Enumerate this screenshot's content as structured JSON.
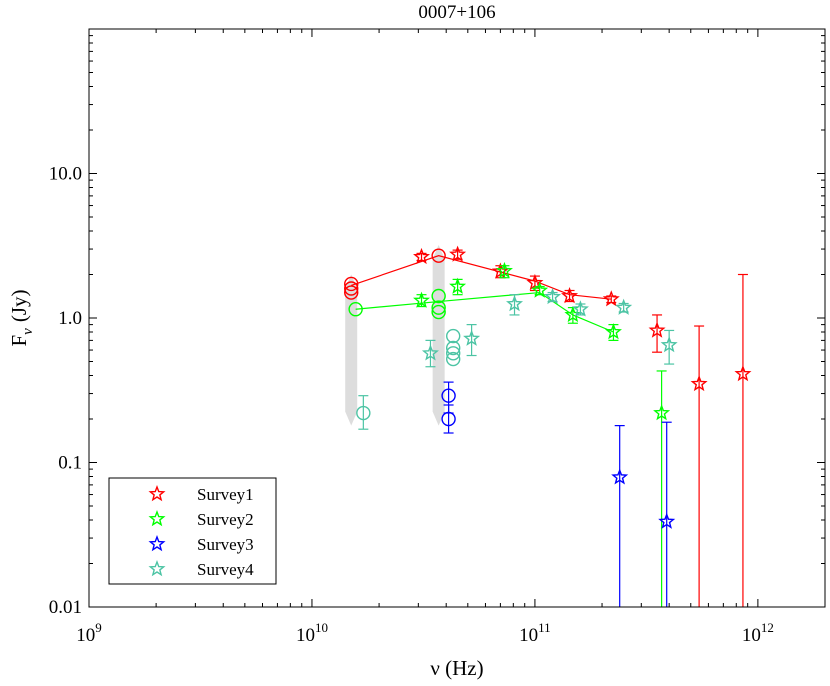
{
  "chart_data": {
    "type": "scatter",
    "title": "0007+106",
    "xlabel": "ν (Hz)",
    "ylabel_main": "F",
    "ylabel_sub": "ν",
    "ylabel_unit": "(Jy)",
    "x_scale": "log",
    "y_scale": "log",
    "xlim": [
      1000000000.0,
      2000000000000.0
    ],
    "ylim": [
      0.01,
      100
    ],
    "x_ticks": [
      {
        "value": 1000000000.0,
        "base": "10",
        "exp": "9"
      },
      {
        "value": 10000000000.0,
        "base": "10",
        "exp": "10"
      },
      {
        "value": 100000000000.0,
        "base": "10",
        "exp": "11"
      },
      {
        "value": 1000000000000.0,
        "base": "10",
        "exp": "12"
      }
    ],
    "y_ticks": [
      {
        "value": 0.01,
        "label": "0.01"
      },
      {
        "value": 0.1,
        "label": "0.1"
      },
      {
        "value": 1,
        "label": "1.0"
      },
      {
        "value": 10,
        "label": "10.0"
      }
    ],
    "legend_position": "bottom-left",
    "grey_bands": [
      {
        "x": 15000000000.0,
        "ymin": 0.18,
        "ymax": 2.0
      },
      {
        "x": 37000000000.0,
        "ymin": 0.18,
        "ymax": 3.2
      }
    ],
    "series": [
      {
        "name": "Survey1",
        "color": "#ff0000",
        "stars": [
          {
            "x": 31000000000.0,
            "y": 2.65,
            "err": [
              2.5,
              2.8
            ]
          },
          {
            "x": 45000000000.0,
            "y": 2.75,
            "err": [
              2.55,
              2.95
            ]
          },
          {
            "x": 70000000000.0,
            "y": 2.1,
            "err": [
              1.9,
              2.3
            ]
          },
          {
            "x": 100000000000.0,
            "y": 1.75,
            "err": [
              1.55,
              1.95
            ]
          },
          {
            "x": 143000000000.0,
            "y": 1.42,
            "err": [
              1.3,
              1.55
            ]
          },
          {
            "x": 220000000000.0,
            "y": 1.35,
            "err": [
              1.28,
              1.42
            ]
          },
          {
            "x": 353000000000.0,
            "y": 0.82,
            "err": [
              0.58,
              1.05
            ]
          },
          {
            "x": 545000000000.0,
            "y": 0.35,
            "err": [
              0.01,
              0.88
            ]
          },
          {
            "x": 857000000000.0,
            "y": 0.41,
            "err": [
              0.01,
              2.0
            ]
          }
        ],
        "circles": [
          {
            "x": 15000000000.0,
            "y": 1.72
          },
          {
            "x": 15000000000.0,
            "y": 1.6
          },
          {
            "x": 15000000000.0,
            "y": 1.5
          },
          {
            "x": 37000000000.0,
            "y": 2.7
          }
        ],
        "line": [
          {
            "x": 15000000000.0,
            "y": 1.68
          },
          {
            "x": 37000000000.0,
            "y": 2.7
          },
          {
            "x": 100000000000.0,
            "y": 1.8
          },
          {
            "x": 143000000000.0,
            "y": 1.45
          },
          {
            "x": 220000000000.0,
            "y": 1.35
          }
        ]
      },
      {
        "name": "Survey2",
        "color": "#00ff00",
        "stars": [
          {
            "x": 31000000000.0,
            "y": 1.32,
            "err": [
              1.2,
              1.45
            ]
          },
          {
            "x": 45000000000.0,
            "y": 1.65,
            "err": [
              1.45,
              1.85
            ]
          },
          {
            "x": 73000000000.0,
            "y": 2.12,
            "err": [
              1.9,
              2.3
            ]
          },
          {
            "x": 105000000000.0,
            "y": 1.55,
            "err": [
              1.45,
              1.65
            ]
          },
          {
            "x": 148000000000.0,
            "y": 1.05,
            "err": [
              0.92,
              1.18
            ]
          },
          {
            "x": 225000000000.0,
            "y": 0.8,
            "err": [
              0.7,
              0.9
            ]
          },
          {
            "x": 370000000000.0,
            "y": 0.22,
            "err": [
              0.01,
              0.43
            ]
          }
        ],
        "circles": [
          {
            "x": 15700000000.0,
            "y": 1.15
          },
          {
            "x": 37000000000.0,
            "y": 1.42
          },
          {
            "x": 37000000000.0,
            "y": 1.18
          },
          {
            "x": 37000000000.0,
            "y": 1.1
          }
        ],
        "line": [
          {
            "x": 15700000000.0,
            "y": 1.15
          },
          {
            "x": 37000000000.0,
            "y": 1.3
          },
          {
            "x": 105000000000.0,
            "y": 1.5
          },
          {
            "x": 148000000000.0,
            "y": 1.05
          },
          {
            "x": 225000000000.0,
            "y": 0.8
          }
        ]
      },
      {
        "name": "Survey3",
        "color": "#0000ff",
        "stars": [
          {
            "x": 240000000000.0,
            "y": 0.079,
            "err": [
              0.01,
              0.18
            ]
          },
          {
            "x": 390000000000.0,
            "y": 0.039,
            "err": [
              0.01,
              0.19
            ]
          }
        ],
        "circles": [
          {
            "x": 41000000000.0,
            "y": 0.29,
            "err": [
              0.22,
              0.36
            ]
          },
          {
            "x": 41000000000.0,
            "y": 0.2,
            "err": [
              0.16,
              0.25
            ]
          }
        ],
        "line": []
      },
      {
        "name": "Survey4",
        "color": "#4cc4a4",
        "stars": [
          {
            "x": 34000000000.0,
            "y": 0.57,
            "err": [
              0.46,
              0.7
            ]
          },
          {
            "x": 52000000000.0,
            "y": 0.72,
            "err": [
              0.55,
              0.9
            ]
          },
          {
            "x": 81000000000.0,
            "y": 1.25,
            "err": [
              1.05,
              1.45
            ]
          },
          {
            "x": 120000000000.0,
            "y": 1.4,
            "err": [
              1.3,
              1.5
            ]
          },
          {
            "x": 160000000000.0,
            "y": 1.15,
            "err": [
              1.05,
              1.25
            ]
          },
          {
            "x": 250000000000.0,
            "y": 1.18,
            "err": [
              1.1,
              1.26
            ]
          },
          {
            "x": 400000000000.0,
            "y": 0.65,
            "err": [
              0.48,
              0.82
            ]
          }
        ],
        "circles": [
          {
            "x": 17000000000.0,
            "y": 0.22,
            "err": [
              0.17,
              0.29
            ]
          },
          {
            "x": 43000000000.0,
            "y": 0.75
          },
          {
            "x": 43000000000.0,
            "y": 0.62
          },
          {
            "x": 43000000000.0,
            "y": 0.57
          },
          {
            "x": 43000000000.0,
            "y": 0.52
          }
        ],
        "line": []
      }
    ]
  }
}
